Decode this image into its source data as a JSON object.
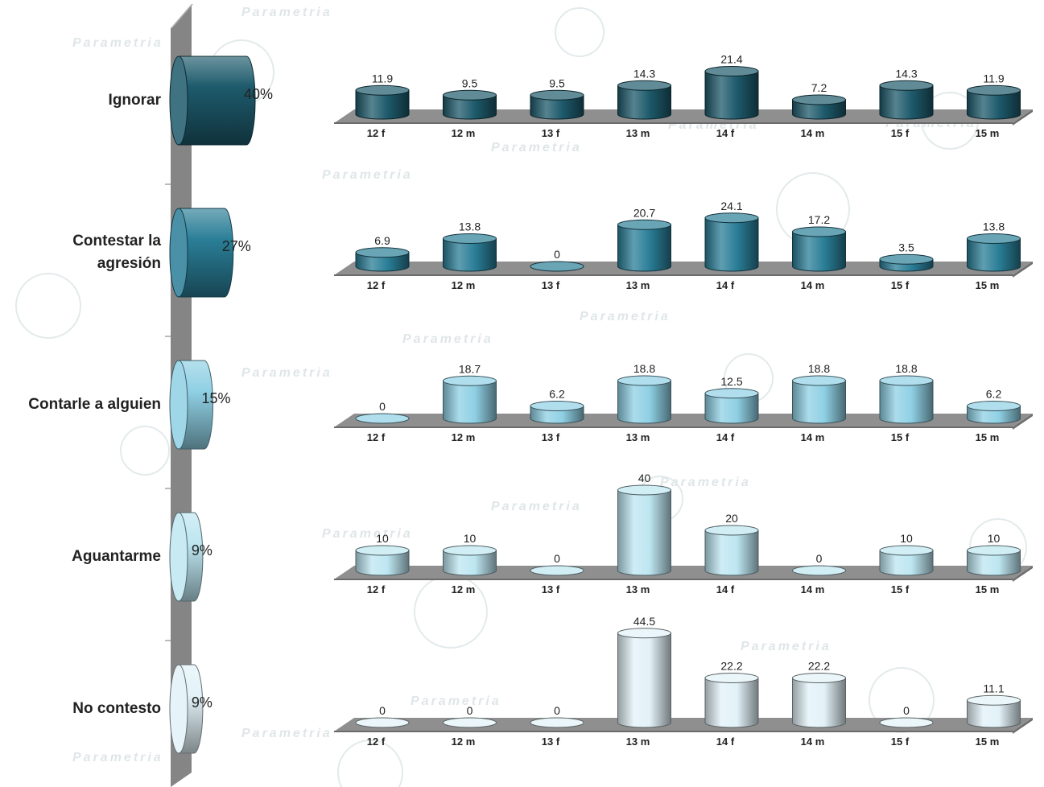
{
  "chart_data": {
    "type": "bar",
    "watermark": "Parametria",
    "categories": [
      "12 f",
      "12 m",
      "13 f",
      "13 m",
      "14 f",
      "14 m",
      "15 f",
      "15 m"
    ],
    "series": [
      {
        "name": "Ignorar",
        "total_label": "40%",
        "total": 40,
        "color": "#1d5a6b",
        "values": [
          11.9,
          9.5,
          9.5,
          14.3,
          21.4,
          7.2,
          14.3,
          11.9
        ]
      },
      {
        "name": "Contestar la agresión",
        "total_label": "27%",
        "total": 27,
        "color": "#2a7e97",
        "values": [
          6.9,
          13.8,
          0,
          20.7,
          24.1,
          17.2,
          3.5,
          13.8
        ]
      },
      {
        "name": "Contarle a alguien",
        "total_label": "15%",
        "total": 15,
        "color": "#8fd0e4",
        "values": [
          0,
          18.7,
          6.2,
          18.8,
          12.5,
          18.8,
          18.8,
          6.2
        ]
      },
      {
        "name": "Aguantarme",
        "total_label": "9%",
        "total": 9,
        "color": "#bde6f1",
        "values": [
          10,
          10,
          0,
          40,
          20,
          0,
          10,
          10
        ]
      },
      {
        "name": "No contesto",
        "total_label": "9%",
        "total": 9,
        "color": "#e2f2f8",
        "values": [
          0,
          0,
          0,
          44.5,
          22.2,
          22.2,
          0,
          11.1
        ]
      }
    ],
    "value_labels": [
      [
        "11.9",
        "9.5",
        "9.5",
        "14.3",
        "21.4",
        "7.2",
        "14.3",
        "11.9"
      ],
      [
        "6.9",
        "13.8",
        "0",
        "20.7",
        "24.1",
        "17.2",
        "3.5",
        "13.8"
      ],
      [
        "0",
        "18.7",
        "6.2",
        "18.8",
        "12.5",
        "18.8",
        "18.8",
        "6.2"
      ],
      [
        "10",
        "10",
        "0",
        "40",
        "20",
        "0",
        "10",
        "10"
      ],
      [
        "0",
        "0",
        "0",
        "44.5",
        "22.2",
        "22.2",
        "0",
        "11.1"
      ]
    ],
    "label_lines": [
      [
        "Ignorar"
      ],
      [
        "Contestar la",
        "agresión"
      ],
      [
        "Contarle a alguien"
      ],
      [
        "Aguantarme"
      ],
      [
        "No contesto"
      ]
    ]
  }
}
